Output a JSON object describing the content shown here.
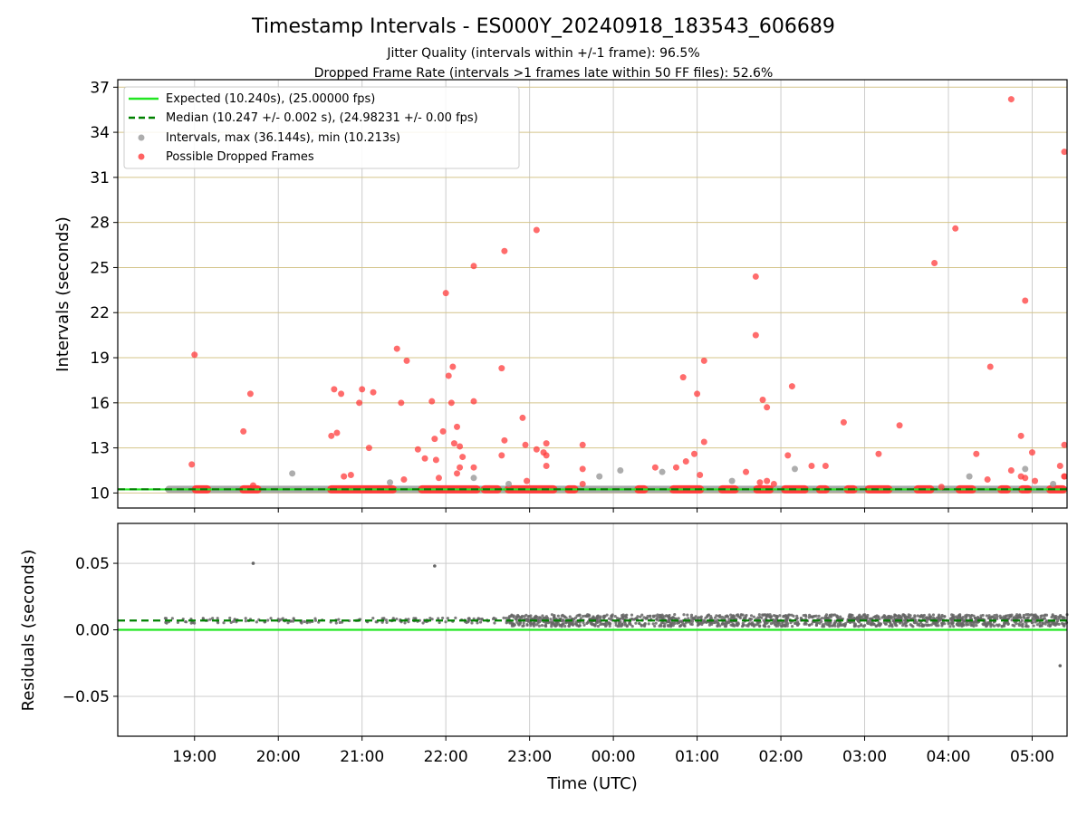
{
  "colors": {
    "expected": "#22e622",
    "median": "#008000",
    "interval": "#999999",
    "dropped": "#ff3b3b",
    "residual": "#666666",
    "ygrid": "#d4c48a",
    "xgrid": "#cccccc"
  },
  "chart_data": [
    {
      "type": "scatter",
      "title": "Timestamp Intervals - ES000Y_20240918_183543_606689",
      "subtitle": [
        "Jitter Quality (intervals within +/-1 frame): 96.5%",
        "Dropped Frame Rate (intervals >1 frames late within 50 FF files): 52.6%"
      ],
      "xlabel": "",
      "ylabel": "Intervals (seconds)",
      "xlim": [
        "18:05",
        "05:25"
      ],
      "ylim": [
        9.0,
        37.5
      ],
      "yticks": [
        10,
        13,
        16,
        19,
        22,
        25,
        28,
        31,
        34,
        37
      ],
      "xticks": [
        "19:00",
        "20:00",
        "21:00",
        "22:00",
        "23:00",
        "00:00",
        "01:00",
        "02:00",
        "03:00",
        "04:00",
        "05:00"
      ],
      "grid": true,
      "legend_position": "top-left",
      "legend": [
        "Expected (10.240s), (25.00000 fps)",
        "Median (10.247 +/- 0.002 s), (24.98231 +/- 0.00 fps)",
        "Intervals, max (36.144s), min (10.213s)",
        "Possible Dropped Frames"
      ],
      "expected": 10.24,
      "median": 10.247,
      "dense_interval_band": {
        "x_start": "18:39",
        "x_end": "05:25",
        "y": 10.24
      },
      "dropped_band_segments": [
        [
          "18:58",
          "19:12"
        ],
        [
          "19:32",
          "19:48"
        ],
        [
          "20:35",
          "21:25"
        ],
        [
          "21:40",
          "22:25"
        ],
        [
          "22:25",
          "22:40"
        ],
        [
          "22:42",
          "23:20"
        ],
        [
          "23:25",
          "23:35"
        ],
        [
          "00:15",
          "00:25"
        ],
        [
          "00:40",
          "01:05"
        ],
        [
          "01:15",
          "01:30"
        ],
        [
          "01:40",
          "01:55"
        ],
        [
          "02:00",
          "02:20"
        ],
        [
          "02:25",
          "02:35"
        ],
        [
          "02:45",
          "02:55"
        ],
        [
          "03:00",
          "03:20"
        ],
        [
          "03:35",
          "03:50"
        ],
        [
          "04:05",
          "04:20"
        ],
        [
          "04:35",
          "04:45"
        ],
        [
          "04:50",
          "05:00"
        ],
        [
          "05:10",
          "05:25"
        ]
      ],
      "intervals": [
        {
          "x": "20:10",
          "y": 11.3
        },
        {
          "x": "21:20",
          "y": 10.7
        },
        {
          "x": "22:20",
          "y": 11.0
        },
        {
          "x": "23:50",
          "y": 11.1
        },
        {
          "x": "00:05",
          "y": 11.5
        },
        {
          "x": "00:35",
          "y": 11.4
        },
        {
          "x": "01:25",
          "y": 10.8
        },
        {
          "x": "02:10",
          "y": 11.6
        },
        {
          "x": "04:15",
          "y": 11.1
        },
        {
          "x": "04:55",
          "y": 11.6
        },
        {
          "x": "05:15",
          "y": 10.6
        },
        {
          "x": "22:45",
          "y": 10.6
        }
      ],
      "dropped": [
        {
          "x": "19:00",
          "y": 19.2
        },
        {
          "x": "18:58",
          "y": 11.9
        },
        {
          "x": "19:35",
          "y": 14.1
        },
        {
          "x": "19:40",
          "y": 16.6
        },
        {
          "x": "19:42",
          "y": 10.5
        },
        {
          "x": "20:38",
          "y": 13.8
        },
        {
          "x": "20:40",
          "y": 16.9
        },
        {
          "x": "20:42",
          "y": 14.0
        },
        {
          "x": "20:45",
          "y": 16.6
        },
        {
          "x": "20:47",
          "y": 11.1
        },
        {
          "x": "20:52",
          "y": 11.2
        },
        {
          "x": "20:58",
          "y": 16.0
        },
        {
          "x": "21:00",
          "y": 16.9
        },
        {
          "x": "21:05",
          "y": 13.0
        },
        {
          "x": "21:08",
          "y": 16.7
        },
        {
          "x": "21:25",
          "y": 19.6
        },
        {
          "x": "21:28",
          "y": 16.0
        },
        {
          "x": "21:30",
          "y": 10.9
        },
        {
          "x": "21:32",
          "y": 18.8
        },
        {
          "x": "21:40",
          "y": 12.9
        },
        {
          "x": "21:45",
          "y": 12.3
        },
        {
          "x": "21:50",
          "y": 16.1
        },
        {
          "x": "21:52",
          "y": 13.6
        },
        {
          "x": "21:53",
          "y": 12.2
        },
        {
          "x": "21:55",
          "y": 11.0
        },
        {
          "x": "21:58",
          "y": 14.1
        },
        {
          "x": "22:00",
          "y": 23.3
        },
        {
          "x": "22:02",
          "y": 17.8
        },
        {
          "x": "22:04",
          "y": 16.0
        },
        {
          "x": "22:05",
          "y": 18.4
        },
        {
          "x": "22:06",
          "y": 13.3
        },
        {
          "x": "22:08",
          "y": 11.3
        },
        {
          "x": "22:08",
          "y": 14.4
        },
        {
          "x": "22:10",
          "y": 13.1
        },
        {
          "x": "22:10",
          "y": 11.7
        },
        {
          "x": "22:12",
          "y": 12.4
        },
        {
          "x": "22:20",
          "y": 25.1
        },
        {
          "x": "22:20",
          "y": 16.1
        },
        {
          "x": "22:20",
          "y": 11.7
        },
        {
          "x": "22:40",
          "y": 18.3
        },
        {
          "x": "22:42",
          "y": 26.1
        },
        {
          "x": "22:42",
          "y": 13.5
        },
        {
          "x": "22:40",
          "y": 12.5
        },
        {
          "x": "22:55",
          "y": 15.0
        },
        {
          "x": "22:57",
          "y": 13.2
        },
        {
          "x": "22:58",
          "y": 10.8
        },
        {
          "x": "23:05",
          "y": 27.5
        },
        {
          "x": "23:05",
          "y": 12.9
        },
        {
          "x": "23:10",
          "y": 12.7
        },
        {
          "x": "23:12",
          "y": 13.3
        },
        {
          "x": "23:12",
          "y": 12.5
        },
        {
          "x": "23:12",
          "y": 11.8
        },
        {
          "x": "23:38",
          "y": 13.2
        },
        {
          "x": "23:38",
          "y": 11.6
        },
        {
          "x": "23:38",
          "y": 10.6
        },
        {
          "x": "00:30",
          "y": 11.7
        },
        {
          "x": "00:45",
          "y": 11.7
        },
        {
          "x": "00:50",
          "y": 17.7
        },
        {
          "x": "00:52",
          "y": 12.1
        },
        {
          "x": "00:58",
          "y": 12.6
        },
        {
          "x": "01:00",
          "y": 16.6
        },
        {
          "x": "01:02",
          "y": 11.2
        },
        {
          "x": "01:05",
          "y": 18.8
        },
        {
          "x": "01:05",
          "y": 13.4
        },
        {
          "x": "01:35",
          "y": 11.4
        },
        {
          "x": "01:42",
          "y": 24.4
        },
        {
          "x": "01:42",
          "y": 20.5
        },
        {
          "x": "01:45",
          "y": 10.7
        },
        {
          "x": "01:47",
          "y": 16.2
        },
        {
          "x": "01:50",
          "y": 15.7
        },
        {
          "x": "01:50",
          "y": 10.8
        },
        {
          "x": "01:55",
          "y": 10.6
        },
        {
          "x": "02:05",
          "y": 12.5
        },
        {
          "x": "02:08",
          "y": 17.1
        },
        {
          "x": "02:22",
          "y": 11.8
        },
        {
          "x": "02:32",
          "y": 11.8
        },
        {
          "x": "02:45",
          "y": 14.7
        },
        {
          "x": "03:10",
          "y": 12.6
        },
        {
          "x": "03:25",
          "y": 14.5
        },
        {
          "x": "03:50",
          "y": 25.3
        },
        {
          "x": "03:55",
          "y": 10.4
        },
        {
          "x": "04:05",
          "y": 27.6
        },
        {
          "x": "04:20",
          "y": 12.6
        },
        {
          "x": "04:30",
          "y": 18.4
        },
        {
          "x": "04:28",
          "y": 10.9
        },
        {
          "x": "04:45",
          "y": 36.2
        },
        {
          "x": "04:45",
          "y": 11.5
        },
        {
          "x": "04:52",
          "y": 13.8
        },
        {
          "x": "04:52",
          "y": 11.1
        },
        {
          "x": "04:55",
          "y": 22.8
        },
        {
          "x": "04:55",
          "y": 11.0
        },
        {
          "x": "05:00",
          "y": 12.7
        },
        {
          "x": "05:02",
          "y": 10.8
        },
        {
          "x": "05:20",
          "y": 11.8
        },
        {
          "x": "05:25",
          "y": 11.1
        },
        {
          "x": "05:38",
          "y": 13.2
        },
        {
          "x": "05:40",
          "y": 11.1
        },
        {
          "x": "05:43",
          "y": 32.7
        }
      ]
    },
    {
      "type": "scatter",
      "title": "",
      "xlabel": "Time (UTC)",
      "ylabel": "Residuals (seconds)",
      "xlim": [
        "18:05",
        "05:25"
      ],
      "ylim": [
        -0.08,
        0.08
      ],
      "yticks": [
        0.05,
        0.0,
        -0.05
      ],
      "ytick_labels": [
        "0.05",
        "0.00",
        "−0.05"
      ],
      "xticks": [
        "19:00",
        "20:00",
        "21:00",
        "22:00",
        "23:00",
        "00:00",
        "01:00",
        "02:00",
        "03:00",
        "04:00",
        "05:00"
      ],
      "grid": true,
      "expected": 0.0,
      "median": 0.007,
      "residual_band_sparse": {
        "x_start": "18:39",
        "x_end": "22:45",
        "y": 0.007
      },
      "residual_band_dense": {
        "x_start": "22:45",
        "x_end": "05:25",
        "y": 0.007
      },
      "outliers": [
        {
          "x": "19:42",
          "y": 0.05
        },
        {
          "x": "21:52",
          "y": 0.048
        },
        {
          "x": "05:20",
          "y": -0.027
        }
      ]
    }
  ]
}
